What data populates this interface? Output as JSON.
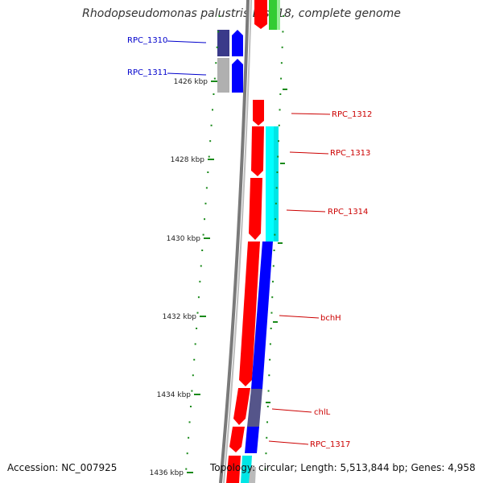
{
  "title": "Rhodopseudomonas palustris BisB18, complete genome",
  "footer": {
    "accession": "Accession: NC_007925",
    "summary": "Topology: circular; Length: 5,513,844 bp; Genes: 4,958"
  },
  "ruler": {
    "unit": "kbp",
    "labels": [
      "1426 kbp",
      "1428 kbp",
      "1430 kbp",
      "1432 kbp",
      "1434 kbp",
      "1436 kbp"
    ]
  },
  "colors": {
    "tick": "#1a8a1a",
    "backbone": "#888888",
    "forward": "#ff0000",
    "cyan": "#00ffff",
    "blue": "#0000ff",
    "green": "#33cc33",
    "slate": "#4a4a9a",
    "grey": "#b0b0b0",
    "navy": "#3a3a8a",
    "labelBlue": "#0000cc",
    "labelRed": "#cc0000"
  },
  "genes": [
    {
      "name": "RPC_1310",
      "color": "labelBlue"
    },
    {
      "name": "RPC_1311",
      "color": "labelBlue"
    },
    {
      "name": "RPC_1312",
      "color": "labelRed"
    },
    {
      "name": "RPC_1313",
      "color": "labelRed"
    },
    {
      "name": "RPC_1314",
      "color": "labelRed"
    },
    {
      "name": "bchH",
      "color": "labelRed"
    },
    {
      "name": "chlL",
      "color": "labelRed"
    },
    {
      "name": "RPC_1317",
      "color": "labelRed"
    }
  ]
}
